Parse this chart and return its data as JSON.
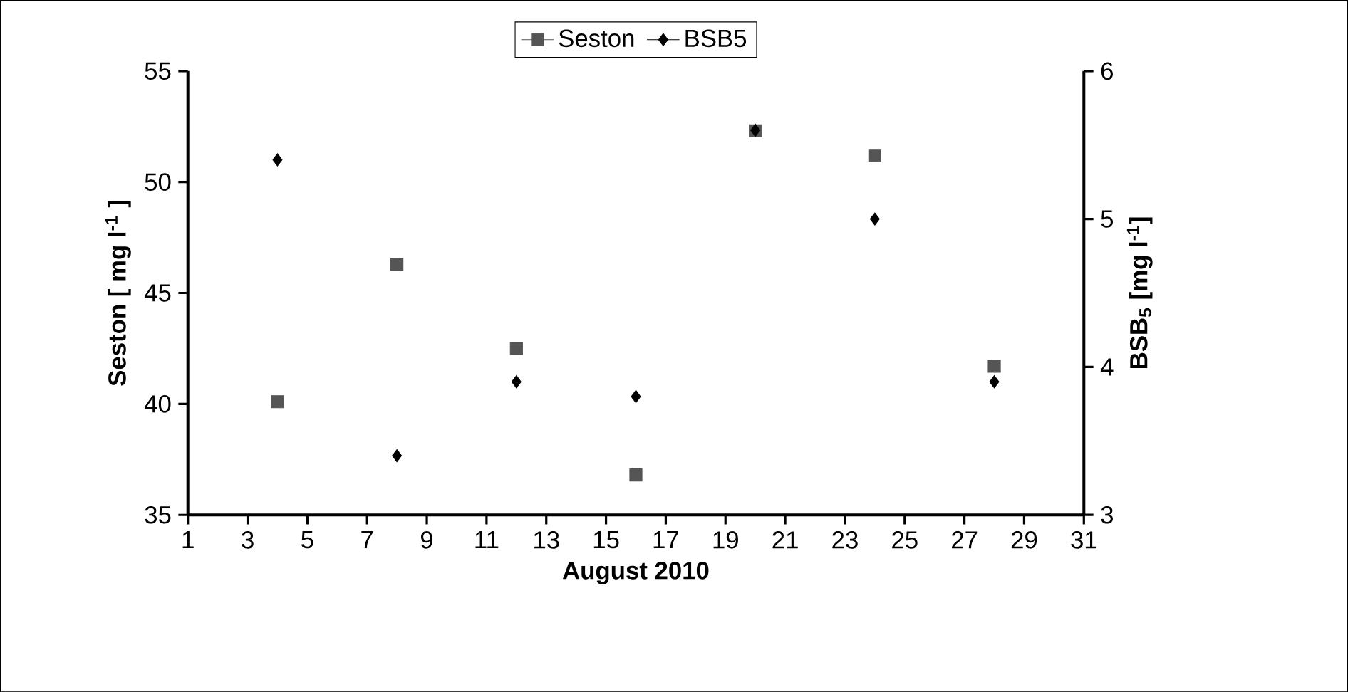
{
  "chart_data": {
    "type": "scatter",
    "xlabel": "August 2010",
    "ylabel": "Seston [ mg l$^{-1}$ ]",
    "y2label": "BSB$_{5}$ [mg l$^{-1}$]",
    "x": [
      4,
      8,
      12,
      16,
      20,
      24,
      28
    ],
    "series": [
      {
        "name": "Seston",
        "color": "#555555",
        "marker": "square",
        "values": [
          40.1,
          46.3,
          42.5,
          36.8,
          52.3,
          51.2,
          41.7
        ]
      },
      {
        "name": "BSB5",
        "color": "#000000",
        "marker": "diamond",
        "axis": "y2",
        "values": [
          5.4,
          3.4,
          3.9,
          3.8,
          5.6,
          5.0,
          3.9
        ]
      }
    ],
    "xlim": [
      1,
      31
    ],
    "xticks": [
      1,
      3,
      5,
      7,
      9,
      11,
      13,
      15,
      17,
      19,
      21,
      23,
      25,
      27,
      29,
      31
    ],
    "ylim": [
      35,
      55
    ],
    "yticks": [
      35,
      40,
      45,
      50,
      55
    ],
    "y2lim": [
      3,
      6
    ],
    "y2ticks": [
      3,
      4,
      5,
      6
    ],
    "legend": "top",
    "grid": false
  }
}
